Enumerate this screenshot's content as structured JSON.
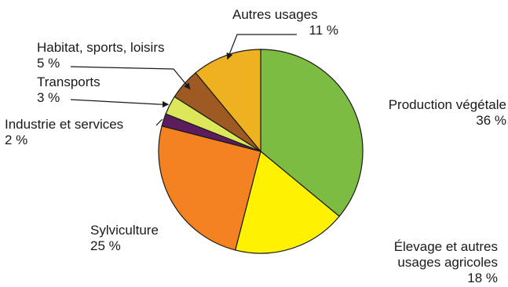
{
  "chart_data": {
    "type": "pie",
    "start_angle_deg": 0,
    "direction": "clockwise",
    "slices": [
      {
        "label": "Production végétale",
        "value": 36,
        "value_label": "36 %",
        "color": "#7dbc42"
      },
      {
        "label": "Élevage et autres usages agricoles",
        "label_lines": [
          "Élevage et autres",
          "usages agricoles"
        ],
        "value": 18,
        "value_label": "18 %",
        "color": "#fff200"
      },
      {
        "label": "Sylviculture",
        "value": 25,
        "value_label": "25 %",
        "color": "#f58220"
      },
      {
        "label": "Industrie et services",
        "value": 2,
        "value_label": "2 %",
        "color": "#5c1d5c"
      },
      {
        "label": "Transports",
        "value": 3,
        "value_label": "3 %",
        "color": "#dce85a"
      },
      {
        "label": "Habitat, sports, loisirs",
        "value": 5,
        "value_label": "5 %",
        "color": "#9e5a22"
      },
      {
        "label": "Autres usages",
        "value": 11,
        "value_label": "11 %",
        "color": "#eeb11f"
      }
    ]
  }
}
